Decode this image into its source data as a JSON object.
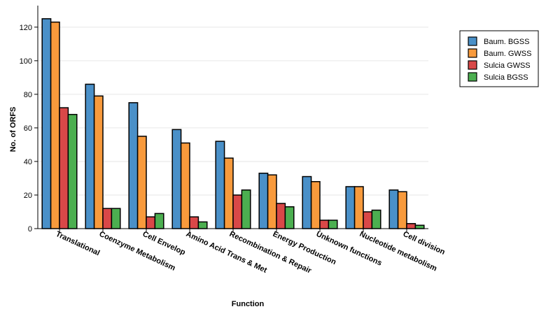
{
  "chart_data": {
    "type": "bar",
    "xlabel": "Function",
    "ylabel": "No. of ORFS",
    "ylim": [
      0,
      132
    ],
    "yticks": [
      0,
      20,
      40,
      60,
      80,
      100,
      120
    ],
    "grid": true,
    "legend": "top-right",
    "categories": [
      "Translational",
      "Coenzyme Metabolism",
      "Cell Envelop",
      "Amino Acid Trans & Met",
      "Recombination & Repair",
      "Energy Production",
      "Unknown functions",
      "Nucleotide metabolism",
      "Cell division"
    ],
    "series": [
      {
        "name": "Baum. BGSS",
        "color": "#4a90c8",
        "values": [
          125,
          86,
          75,
          59,
          52,
          33,
          31,
          25,
          23
        ]
      },
      {
        "name": "Baum. GWSS",
        "color": "#f89a3c",
        "values": [
          123,
          79,
          55,
          51,
          42,
          32,
          28,
          25,
          22
        ]
      },
      {
        "name": "Sulcia GWSS",
        "color": "#d94848",
        "values": [
          72,
          12,
          7,
          7,
          20,
          15,
          5,
          10,
          3
        ]
      },
      {
        "name": "Sulcia BGSS",
        "color": "#4caf50",
        "values": [
          68,
          12,
          9,
          4,
          23,
          13,
          5,
          11,
          2
        ]
      }
    ]
  }
}
